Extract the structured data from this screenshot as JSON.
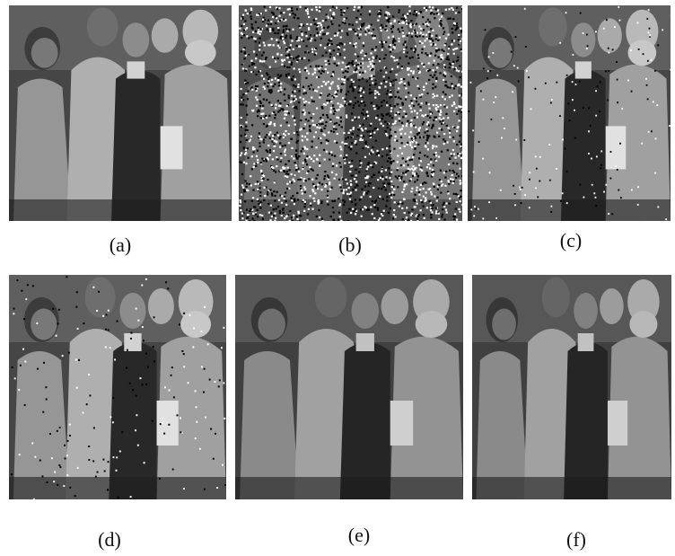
{
  "figure": {
    "panels": [
      {
        "caption": "(a)",
        "noise": "none"
      },
      {
        "caption": "(b)",
        "noise": "heavy"
      },
      {
        "caption": "(c)",
        "noise": "light"
      },
      {
        "caption": "(d)",
        "noise": "light"
      },
      {
        "caption": "(e)",
        "noise": "none"
      },
      {
        "caption": "(f)",
        "noise": "none"
      }
    ]
  }
}
